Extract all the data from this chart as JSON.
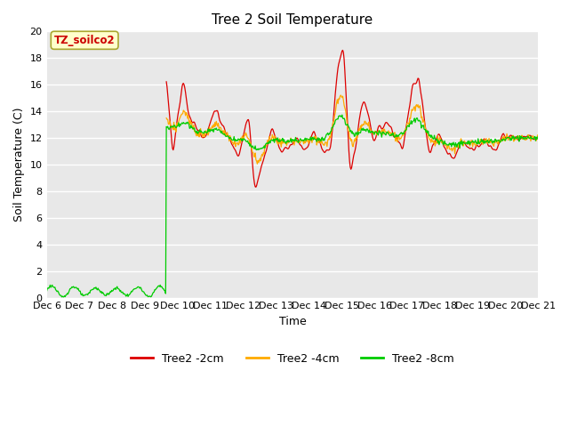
{
  "title": "Tree 2 Soil Temperature",
  "xlabel": "Time",
  "ylabel": "Soil Temperature (C)",
  "ylim": [
    0,
    20
  ],
  "yticks": [
    0,
    2,
    4,
    6,
    8,
    10,
    12,
    14,
    16,
    18,
    20
  ],
  "xtick_labels": [
    "Dec 6",
    "Dec 7",
    "Dec 8",
    "Dec 9",
    "Dec 10",
    "Dec 11",
    "Dec 12",
    "Dec 13",
    "Dec 14",
    "Dec 15",
    "Dec 16",
    "Dec 17",
    "Dec 18",
    "Dec 19",
    "Dec 20",
    "Dec 21"
  ],
  "annotation_text": "TZ_soilco2",
  "annotation_color": "#cc0000",
  "annotation_bg": "#ffffcc",
  "annotation_edge": "#aaa830",
  "bg_color": "#e8e8e8",
  "line_colors": {
    "2cm": "#dd0000",
    "4cm": "#ffaa00",
    "8cm": "#00cc00"
  },
  "legend_labels": [
    "Tree2 -2cm",
    "Tree2 -4cm",
    "Tree2 -8cm"
  ],
  "legend_colors": [
    "#dd0000",
    "#ffaa00",
    "#00cc00"
  ],
  "figsize": [
    6.4,
    4.8
  ],
  "dpi": 100
}
